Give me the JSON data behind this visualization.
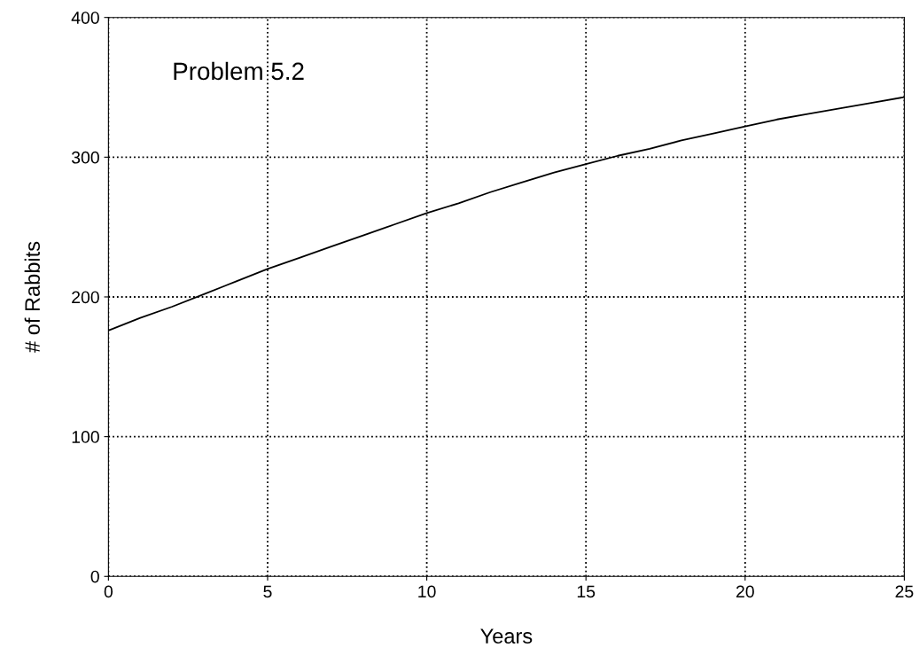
{
  "chart_data": {
    "type": "line",
    "xlabel": "Years",
    "ylabel": "# of Rabbits",
    "annotations": [
      "Problem 5.2"
    ],
    "x": [
      0,
      1,
      2,
      3,
      4,
      5,
      6,
      7,
      8,
      9,
      10,
      11,
      12,
      13,
      14,
      15,
      16,
      17,
      18,
      19,
      20,
      21,
      22,
      23,
      24,
      25
    ],
    "series": [
      {
        "color": "#000000",
        "values": [
          176,
          185,
          193,
          202,
          211,
          220,
          228,
          236,
          244,
          252,
          260,
          267,
          275,
          282,
          289,
          295,
          301,
          306,
          312,
          317,
          322,
          327,
          331,
          335,
          339,
          343
        ]
      }
    ],
    "xlim": [
      0,
      25
    ],
    "xticks": [
      0,
      5,
      10,
      15,
      20,
      25
    ],
    "ylim": [
      0,
      400
    ],
    "yticks": [
      0,
      100,
      200,
      300,
      400
    ],
    "grid": true,
    "line_style": "solid",
    "marker": "none"
  }
}
